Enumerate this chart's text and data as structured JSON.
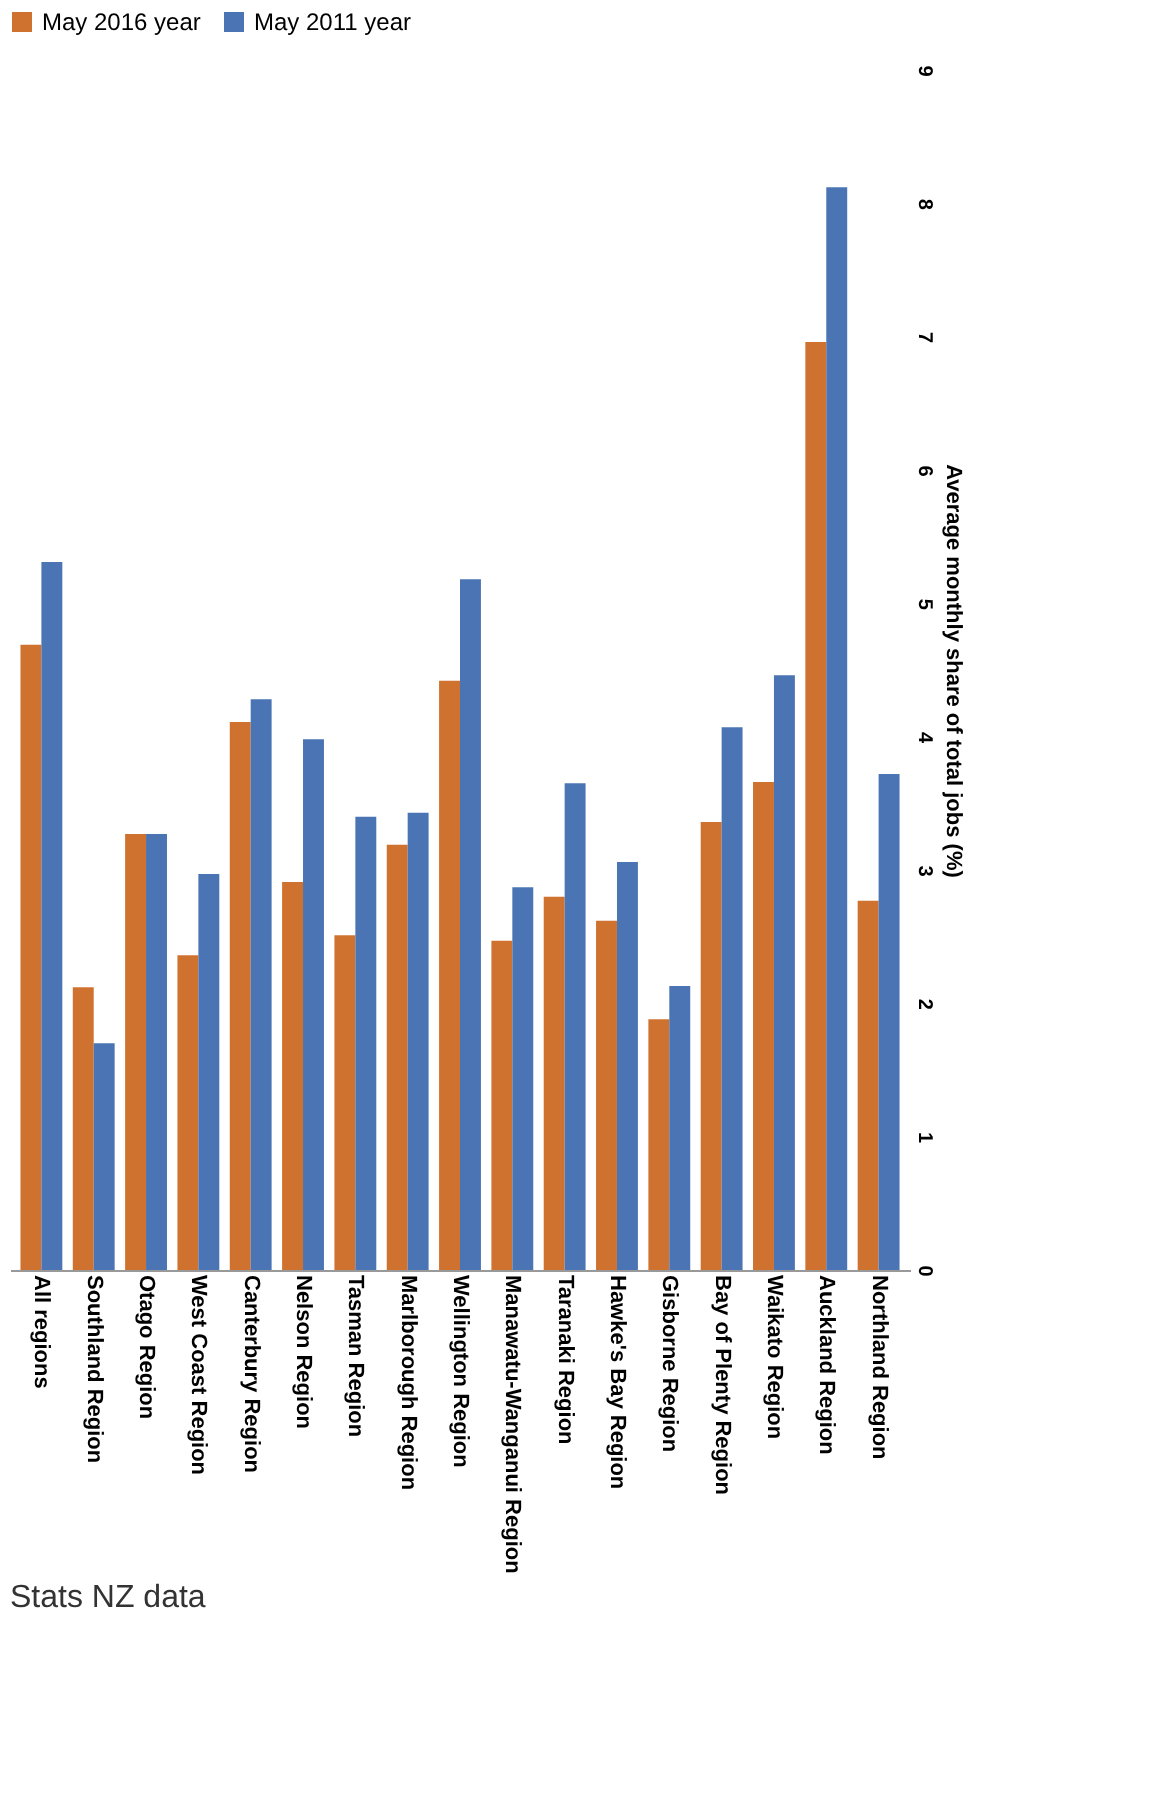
{
  "chart_data": {
    "type": "bar",
    "ylabel": "Average monthly share of total jobs (%)",
    "categories": [
      "All regions",
      "Southland Region",
      "Otago Region",
      "West Coast Region",
      "Canterbury Region",
      "Nelson Region",
      "Tasman Region",
      "Marlborough Region",
      "Wellington Region",
      "Manawatu-Wanganui Region",
      "Taranaki Region",
      "Hawke's Bay Region",
      "Gisborne Region",
      "Bay of Plenty Region",
      "Waikato Region",
      "Auckland Region",
      "Northland Region"
    ],
    "series": [
      {
        "name": "May 2016 year",
        "color": "#d0722f",
        "values": [
          4.69,
          2.12,
          3.27,
          2.36,
          4.11,
          2.91,
          2.51,
          3.19,
          4.42,
          2.47,
          2.8,
          2.62,
          1.88,
          3.36,
          3.66,
          6.96,
          2.77
        ]
      },
      {
        "name": "May 2011 year",
        "color": "#4a74b4",
        "values": [
          5.31,
          1.7,
          3.27,
          2.97,
          4.28,
          3.98,
          3.4,
          3.43,
          5.18,
          2.87,
          3.65,
          3.06,
          2.13,
          4.07,
          4.46,
          8.12,
          3.72
        ]
      }
    ],
    "ylim": [
      0,
      9
    ],
    "yticks": [
      0,
      1,
      2,
      3,
      4,
      5,
      6,
      7,
      8,
      9
    ],
    "grid": false,
    "legend": "top",
    "annotations": [
      "Stats NZ data"
    ]
  }
}
